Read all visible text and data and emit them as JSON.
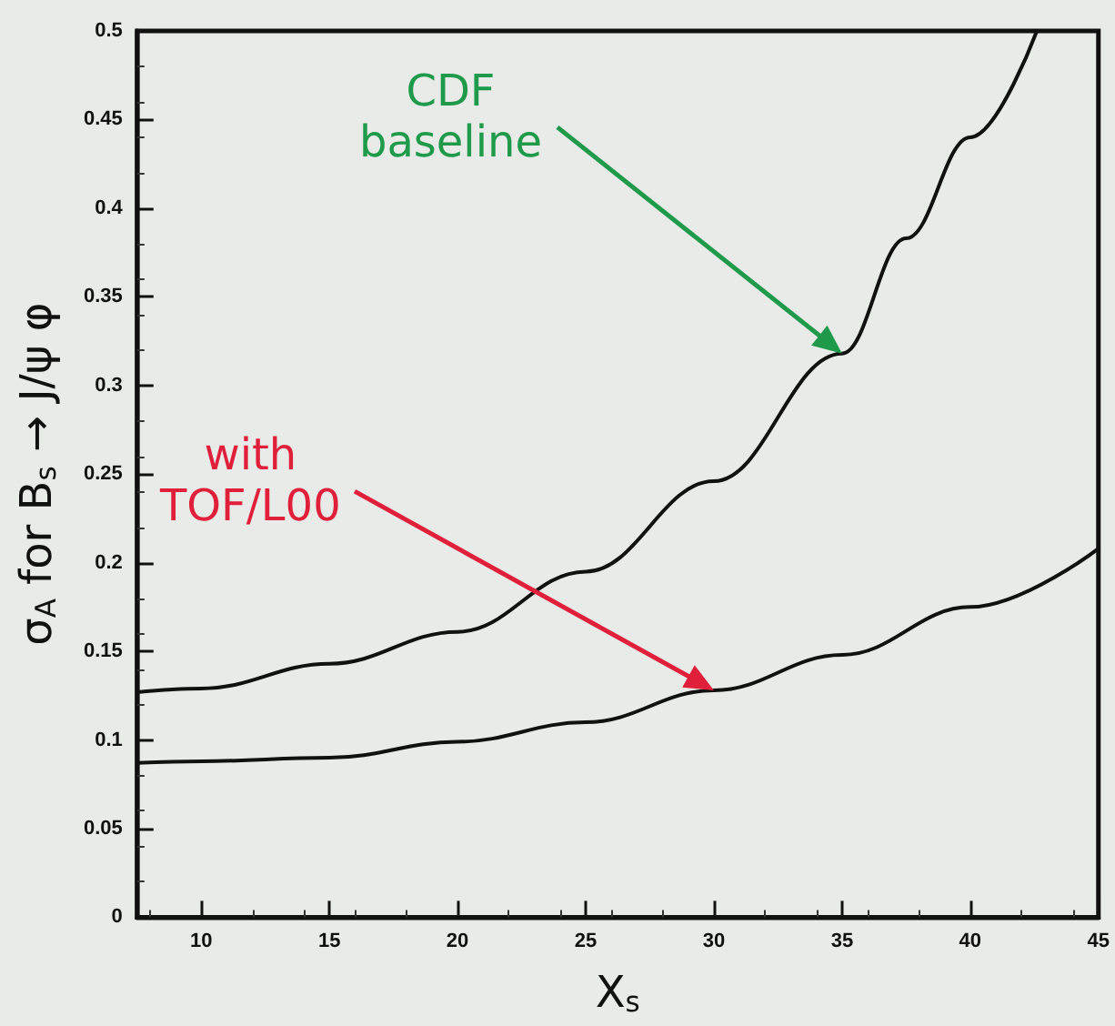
{
  "chart_data": {
    "type": "line",
    "xlabel": "X$_{s}$",
    "ylabel": "σ$_{A}$ for B$_{s}$ → J/ψ φ",
    "xlim": [
      7.5,
      45
    ],
    "xticks": [
      10,
      15,
      20,
      25,
      30,
      35,
      40,
      45
    ],
    "ylim": [
      0,
      0.5
    ],
    "yticks": [
      0,
      0.05,
      0.1,
      0.15,
      0.2,
      0.25,
      0.3,
      0.35,
      0.4,
      0.45,
      0.5
    ],
    "grid": false,
    "marker": "none",
    "line_style": "solid",
    "series": [
      {
        "color": "#111111",
        "x": [
          7.5,
          10,
          15,
          20,
          25,
          30,
          35,
          37.5,
          40,
          42.6
        ],
        "values": [
          0.127,
          0.129,
          0.143,
          0.161,
          0.195,
          0.246,
          0.318,
          0.383,
          0.44,
          0.5
        ]
      },
      {
        "color": "#111111",
        "x": [
          7.5,
          10,
          15,
          20,
          25,
          30,
          35,
          40,
          45
        ],
        "values": [
          0.087,
          0.088,
          0.09,
          0.099,
          0.11,
          0.128,
          0.148,
          0.175,
          0.208
        ]
      }
    ],
    "annotations": [
      {
        "text": "CDF\nbaseline",
        "x": 35,
        "y": 0.318
      },
      {
        "text": "with\nTOF/L00",
        "x": 30,
        "y": 0.128
      }
    ]
  }
}
